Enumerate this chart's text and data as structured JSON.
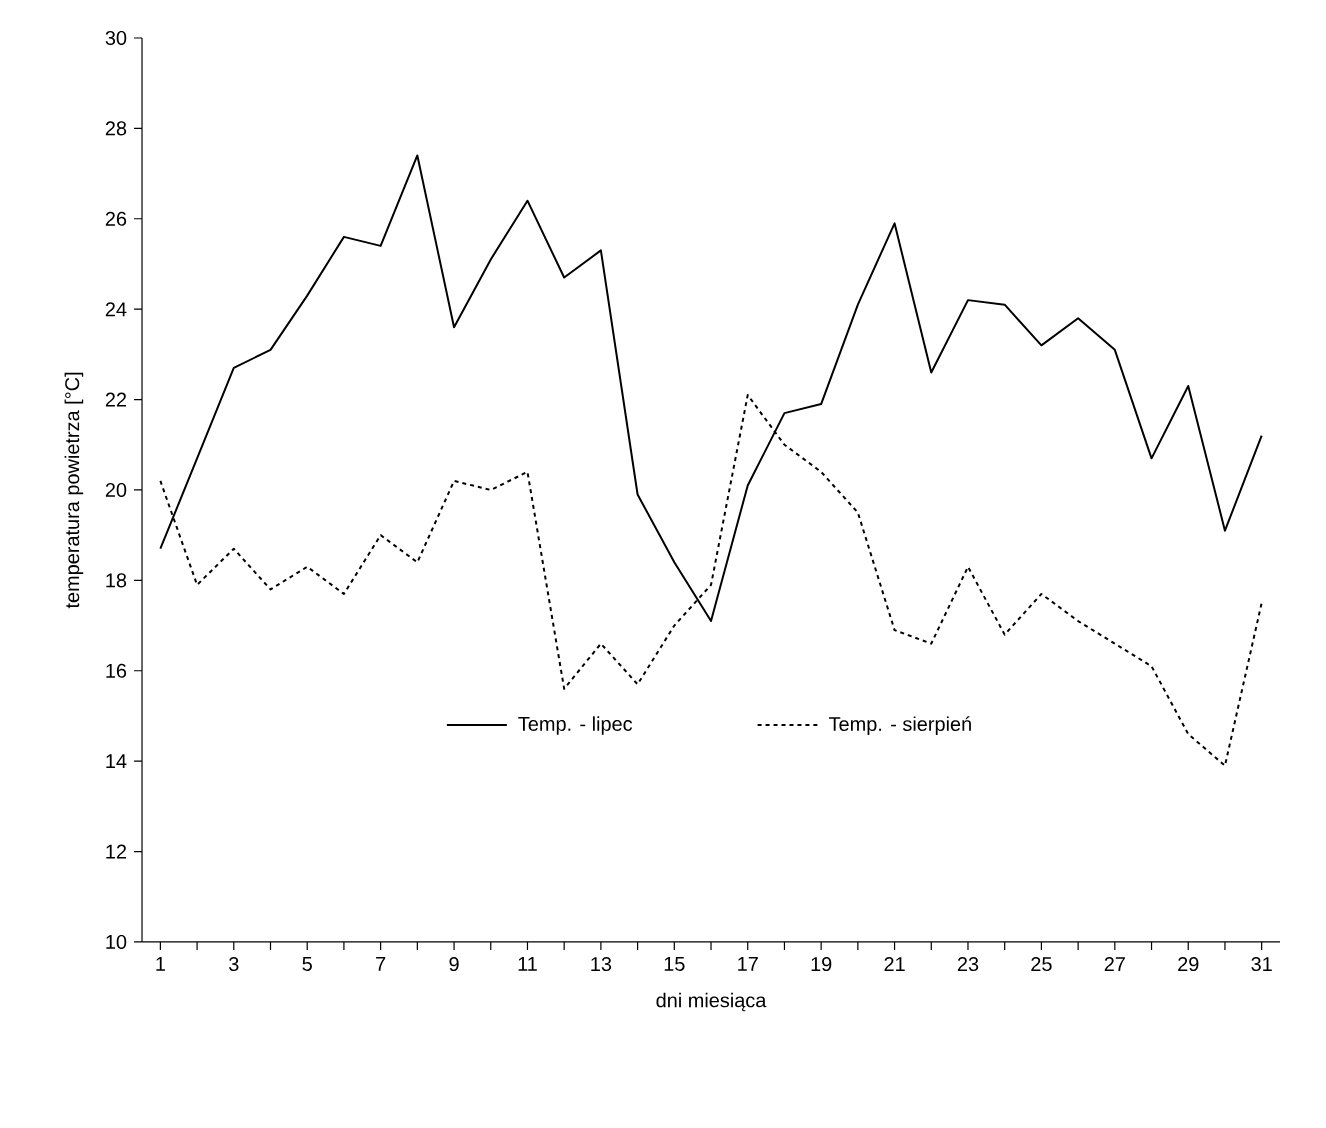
{
  "chart_data": {
    "type": "line",
    "xlabel": "dni miesiąca",
    "ylabel": "temperatura powietrza [°C]",
    "x": [
      1,
      2,
      3,
      4,
      5,
      6,
      7,
      8,
      9,
      10,
      11,
      12,
      13,
      14,
      15,
      16,
      17,
      18,
      19,
      20,
      21,
      22,
      23,
      24,
      25,
      26,
      27,
      28,
      29,
      30,
      31
    ],
    "series": [
      {
        "name": "Temp. - lipec",
        "color": "#000000",
        "line_style": "solid",
        "values": [
          18.7,
          20.7,
          22.7,
          23.1,
          24.3,
          25.6,
          25.4,
          27.4,
          23.6,
          25.1,
          26.4,
          24.7,
          25.3,
          19.9,
          18.4,
          17.1,
          20.1,
          21.7,
          21.9,
          24.1,
          25.9,
          22.6,
          24.2,
          24.1,
          23.2,
          23.8,
          23.1,
          20.7,
          22.3,
          19.1,
          21.2
        ]
      },
      {
        "name": "Temp. - sierpień",
        "color": "#000000",
        "line_style": "dotted",
        "values": [
          20.2,
          17.9,
          18.7,
          17.8,
          18.3,
          17.7,
          19.0,
          18.4,
          20.2,
          20.0,
          20.4,
          15.6,
          16.6,
          15.7,
          17.0,
          17.9,
          22.1,
          21.0,
          20.4,
          19.5,
          16.9,
          16.6,
          18.3,
          16.8,
          17.7,
          17.1,
          16.6,
          16.1,
          14.6,
          13.9,
          17.5
        ]
      }
    ],
    "xlim": [
      0.5,
      31.5
    ],
    "xticks": [
      1,
      {
        "value": 2,
        "label": null
      },
      3,
      {
        "value": 4,
        "label": null
      },
      5,
      {
        "value": 6,
        "label": null
      },
      7,
      {
        "value": 8,
        "label": null
      },
      9,
      {
        "value": 10,
        "label": null
      },
      11,
      {
        "value": 12,
        "label": null
      },
      13,
      {
        "value": 14,
        "label": null
      },
      15,
      {
        "value": 16,
        "label": null
      },
      17,
      {
        "value": 18,
        "label": null
      },
      19,
      {
        "value": 20,
        "label": null
      },
      21,
      {
        "value": 22,
        "label": null
      },
      23,
      {
        "value": 24,
        "label": null
      },
      25,
      {
        "value": 26,
        "label": null
      },
      27,
      {
        "value": 28,
        "label": null
      },
      29,
      {
        "value": 30,
        "label": null
      },
      31
    ],
    "ylim": [
      10,
      30
    ],
    "yticks": [
      10,
      12,
      14,
      16,
      18,
      20,
      22,
      24,
      26,
      28,
      30
    ],
    "grid": false,
    "legend": "bottom",
    "marker": "none"
  }
}
